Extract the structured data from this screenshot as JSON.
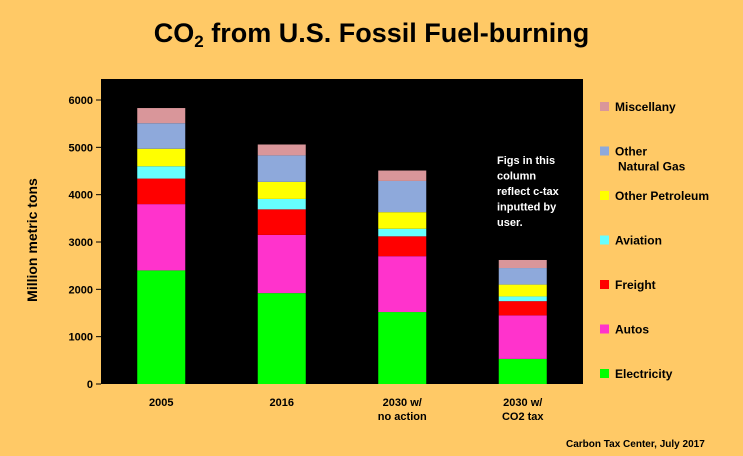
{
  "title_main": "CO",
  "title_sub": "2",
  "title_rest": " from U.S. Fossil Fuel-burning",
  "credit": "Carbon Tax Center, July 2017",
  "colors": {
    "background": "#FFC966",
    "plot_bg": "#000000"
  },
  "chart_data": {
    "type": "bar",
    "stacked": true,
    "ylabel": "Million metric tons",
    "ylim": [
      0,
      6000
    ],
    "yticks": [
      0,
      1000,
      2000,
      3000,
      4000,
      5000,
      6000
    ],
    "grid": false,
    "legend_position": "right",
    "categories": [
      [
        "2005"
      ],
      [
        "2016"
      ],
      [
        "2030 w/",
        "no action"
      ],
      [
        "2030 w/",
        "CO2 tax"
      ]
    ],
    "series": [
      {
        "name": "Electricity",
        "color": "#00FF00",
        "values": [
          2400,
          1920,
          1520,
          530
        ]
      },
      {
        "name": "Autos",
        "color": "#FF33CC",
        "values": [
          1400,
          1230,
          1180,
          920
        ]
      },
      {
        "name": "Freight",
        "color": "#FF0000",
        "values": [
          540,
          540,
          420,
          300
        ]
      },
      {
        "name": "Aviation",
        "color": "#66FFFF",
        "values": [
          260,
          220,
          160,
          100
        ]
      },
      {
        "name": "Other Petroleum",
        "color": "#FFFF00",
        "values": [
          370,
          360,
          350,
          250
        ]
      },
      {
        "name": "Other Natural Gas",
        "color": "#8EA9DB",
        "values": [
          540,
          560,
          660,
          350
        ]
      },
      {
        "name": "Miscellany",
        "color": "#D9969A",
        "values": [
          320,
          230,
          220,
          170
        ]
      }
    ],
    "legend": [
      {
        "lines": [
          "Miscellany"
        ],
        "color": "#D9969A"
      },
      {
        "lines": [
          "Other",
          "Natural Gas"
        ],
        "color": "#8EA9DB"
      },
      {
        "lines": [
          "Other Petroleum"
        ],
        "color": "#FFFF00"
      },
      {
        "lines": [
          "Aviation"
        ],
        "color": "#66FFFF"
      },
      {
        "lines": [
          "Freight"
        ],
        "color": "#FF0000"
      },
      {
        "lines": [
          "Autos"
        ],
        "color": "#FF33CC"
      },
      {
        "lines": [
          "Electricity"
        ],
        "color": "#00FF00"
      }
    ],
    "annotation": [
      "Figs in this",
      "column",
      "reflect c-tax",
      "inputted by",
      "user."
    ]
  }
}
